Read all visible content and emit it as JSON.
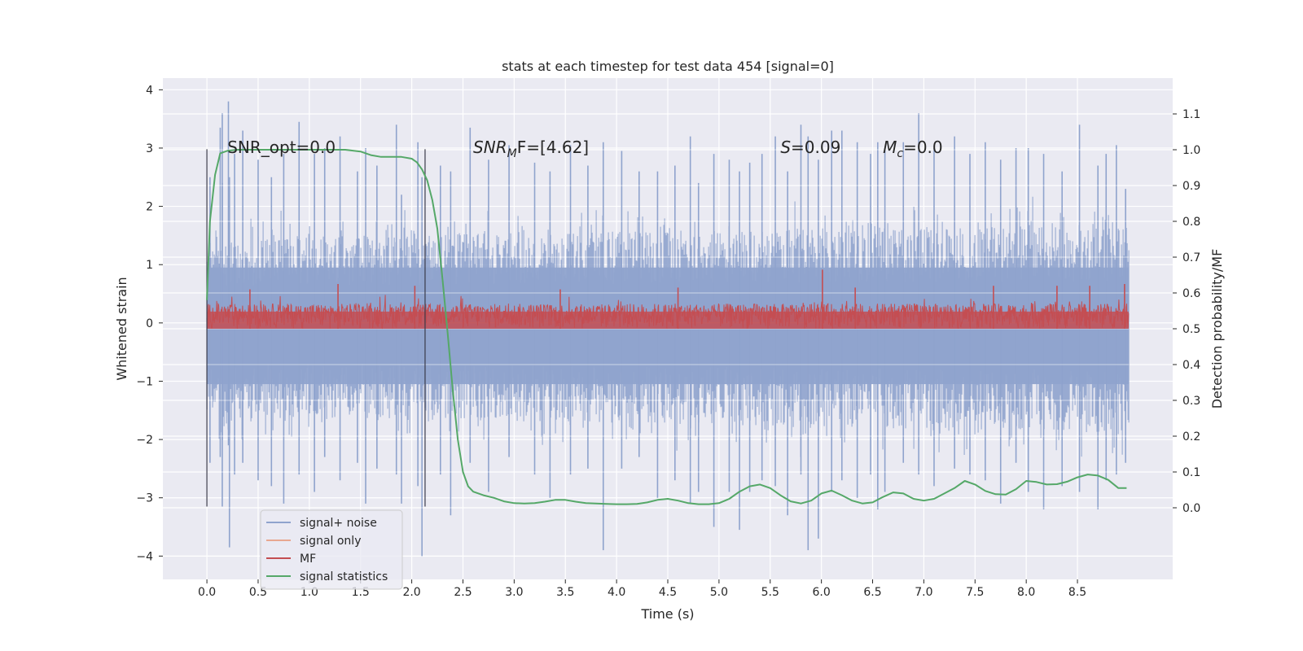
{
  "chart_data": {
    "type": "line",
    "title": "stats at each timestep for test data 454 [signal=0]",
    "xlabel": "Time (s)",
    "ylabel_left": "Whitened strain",
    "ylabel_right": "Detection probability/MF",
    "xlim": [
      -0.43,
      9.43
    ],
    "ylim_left": [
      -4.4,
      4.2
    ],
    "ylim_right": [
      -0.2,
      1.2
    ],
    "xticks": [
      0.0,
      0.5,
      1.0,
      1.5,
      2.0,
      2.5,
      3.0,
      3.5,
      4.0,
      4.5,
      5.0,
      5.5,
      6.0,
      6.5,
      7.0,
      7.5,
      8.0,
      8.5
    ],
    "xtick_labels": [
      "0.0",
      "0.5",
      "1.0",
      "1.5",
      "2.0",
      "2.5",
      "3.0",
      "3.5",
      "4.0",
      "4.5",
      "5.0",
      "5.5",
      "6.0",
      "6.5",
      "7.0",
      "7.5",
      "8.0",
      "8.5"
    ],
    "yticks_left": [
      -4,
      -3,
      -2,
      -1,
      0,
      1,
      2,
      3,
      4
    ],
    "ytick_labels_left": [
      "−4",
      "−3",
      "−2",
      "−1",
      "0",
      "1",
      "2",
      "3",
      "4"
    ],
    "yticks_right": [
      0.0,
      0.1,
      0.2,
      0.3,
      0.4,
      0.5,
      0.6,
      0.7,
      0.8,
      0.9,
      1.0,
      1.1
    ],
    "ytick_labels_right": [
      "0.0",
      "0.1",
      "0.2",
      "0.3",
      "0.4",
      "0.5",
      "0.6",
      "0.7",
      "0.8",
      "0.9",
      "1.0",
      "1.1"
    ],
    "grid": true,
    "legend": {
      "placement": "lower-left",
      "entries": [
        {
          "label": "signal+ noise",
          "color": "#8fa3cd"
        },
        {
          "label": "signal only",
          "color": "#e8a890"
        },
        {
          "label": "MF",
          "color": "#c44e52"
        },
        {
          "label": "signal statistics",
          "color": "#55a868"
        }
      ]
    },
    "annotations": [
      {
        "text": "SNR_opt=0.0",
        "x": 0.2,
        "y": 3.0
      },
      {
        "prefix": "SNR",
        "sub": "M",
        "suffix": "F=[4.62]",
        "x": 2.6,
        "y": 3.0
      },
      {
        "prefix": "S",
        "sub": "",
        "suffix": "=0.09",
        "x": 5.6,
        "y": 3.0
      },
      {
        "prefix": "M",
        "sub": "c",
        "suffix": "=0.0",
        "x": 6.6,
        "y": 3.0
      }
    ],
    "vertical_lines": [
      {
        "x": 0.0,
        "ymin": -3.15,
        "ymax": 2.98
      },
      {
        "x": 2.13,
        "ymin": -3.15,
        "ymax": 2.98
      }
    ],
    "series": [
      {
        "name": "signal+ noise",
        "axis": "left",
        "color": "#8fa3cd",
        "x_range": [
          0.0,
          9.0
        ],
        "band_low": [
          -1.25,
          -1.3,
          -1.4,
          -1.45
        ],
        "band_high": [
          1.15,
          1.2,
          1.25,
          1.3
        ],
        "spikes": [
          {
            "x": 0.03,
            "hi": 2.5,
            "lo": -2.4
          },
          {
            "x": 0.13,
            "hi": 3.35,
            "lo": -2.3
          },
          {
            "x": 0.15,
            "hi": 3.6,
            "lo": -2.0
          },
          {
            "x": 0.15,
            "hi": 2.4,
            "lo": -3.15
          },
          {
            "x": 0.21,
            "hi": 3.8,
            "lo": -2.1
          },
          {
            "x": 0.22,
            "hi": 2.5,
            "lo": -3.85
          },
          {
            "x": 0.27,
            "hi": 2.9,
            "lo": -2.6
          },
          {
            "x": 0.35,
            "hi": 3.3,
            "lo": -2.4
          },
          {
            "x": 0.5,
            "hi": 2.8,
            "lo": -2.7
          },
          {
            "x": 0.63,
            "hi": 2.5,
            "lo": -2.8
          },
          {
            "x": 0.75,
            "hi": 2.9,
            "lo": -3.1
          },
          {
            "x": 0.9,
            "hi": 3.45,
            "lo": -2.6
          },
          {
            "x": 1.05,
            "hi": 2.9,
            "lo": -2.9
          },
          {
            "x": 1.15,
            "hi": 3.0,
            "lo": -2.3
          },
          {
            "x": 1.3,
            "hi": 3.2,
            "lo": -2.7
          },
          {
            "x": 1.47,
            "hi": 2.6,
            "lo": -2.4
          },
          {
            "x": 1.55,
            "hi": 3.0,
            "lo": -3.1
          },
          {
            "x": 1.66,
            "hi": 2.7,
            "lo": -2.5
          },
          {
            "x": 1.85,
            "hi": 3.4,
            "lo": -2.6
          },
          {
            "x": 1.9,
            "hi": 2.2,
            "lo": -3.1
          },
          {
            "x": 2.06,
            "hi": 3.1,
            "lo": -2.8
          },
          {
            "x": 2.1,
            "hi": 2.5,
            "lo": -4.0
          },
          {
            "x": 2.28,
            "hi": 2.7,
            "lo": -2.6
          },
          {
            "x": 2.38,
            "hi": 2.6,
            "lo": -3.3
          },
          {
            "x": 2.57,
            "hi": 3.35,
            "lo": -2.4
          },
          {
            "x": 2.75,
            "hi": 2.8,
            "lo": -2.9
          },
          {
            "x": 2.95,
            "hi": 3.05,
            "lo": -2.3
          },
          {
            "x": 3.2,
            "hi": 2.75,
            "lo": -2.6
          },
          {
            "x": 3.35,
            "hi": 2.6,
            "lo": -3.0
          },
          {
            "x": 3.55,
            "hi": 3.05,
            "lo": -2.6
          },
          {
            "x": 3.72,
            "hi": 2.7,
            "lo": -2.5
          },
          {
            "x": 3.87,
            "hi": 3.1,
            "lo": -3.9
          },
          {
            "x": 4.05,
            "hi": 2.95,
            "lo": -2.5
          },
          {
            "x": 4.22,
            "hi": 2.6,
            "lo": -2.3
          },
          {
            "x": 4.4,
            "hi": 2.6,
            "lo": -3.0
          },
          {
            "x": 4.57,
            "hi": 2.7,
            "lo": -2.7
          },
          {
            "x": 4.72,
            "hi": 3.2,
            "lo": -3.1
          },
          {
            "x": 4.8,
            "hi": 2.4,
            "lo": -2.9
          },
          {
            "x": 4.95,
            "hi": 2.9,
            "lo": -3.5
          },
          {
            "x": 5.1,
            "hi": 2.8,
            "lo": -2.9
          },
          {
            "x": 5.2,
            "hi": 2.6,
            "lo": -3.55
          },
          {
            "x": 5.3,
            "hi": 2.75,
            "lo": -2.9
          },
          {
            "x": 5.42,
            "hi": 2.9,
            "lo": -2.7
          },
          {
            "x": 5.55,
            "hi": 3.2,
            "lo": -2.8
          },
          {
            "x": 5.67,
            "hi": 2.6,
            "lo": -3.3
          },
          {
            "x": 5.8,
            "hi": 3.4,
            "lo": -2.6
          },
          {
            "x": 5.87,
            "hi": 3.2,
            "lo": -3.9
          },
          {
            "x": 5.97,
            "hi": 2.8,
            "lo": -3.7
          },
          {
            "x": 6.1,
            "hi": 3.3,
            "lo": -2.9
          },
          {
            "x": 6.2,
            "hi": 3.3,
            "lo": -2.7
          },
          {
            "x": 6.35,
            "hi": 3.1,
            "lo": -3.0
          },
          {
            "x": 6.48,
            "hi": 2.9,
            "lo": -2.6
          },
          {
            "x": 6.55,
            "hi": 3.1,
            "lo": -3.2
          },
          {
            "x": 6.62,
            "hi": 3.0,
            "lo": -2.9
          },
          {
            "x": 6.8,
            "hi": 3.1,
            "lo": -2.4
          },
          {
            "x": 6.95,
            "hi": 3.6,
            "lo": -2.6
          },
          {
            "x": 7.1,
            "hi": 3.0,
            "lo": -2.8
          },
          {
            "x": 7.3,
            "hi": 3.2,
            "lo": -2.5
          },
          {
            "x": 7.45,
            "hi": 2.9,
            "lo": -2.6
          },
          {
            "x": 7.6,
            "hi": 3.1,
            "lo": -2.7
          },
          {
            "x": 7.75,
            "hi": 2.8,
            "lo": -3.1
          },
          {
            "x": 7.9,
            "hi": 3.0,
            "lo": -2.4
          },
          {
            "x": 8.02,
            "hi": 3.0,
            "lo": -2.9
          },
          {
            "x": 8.17,
            "hi": 2.9,
            "lo": -3.2
          },
          {
            "x": 8.35,
            "hi": 2.6,
            "lo": -2.8
          },
          {
            "x": 8.52,
            "hi": 3.4,
            "lo": -2.9
          },
          {
            "x": 8.7,
            "hi": 2.7,
            "lo": -3.2
          },
          {
            "x": 8.78,
            "hi": 2.9,
            "lo": -2.7
          },
          {
            "x": 8.88,
            "hi": 3.05,
            "lo": -2.6
          },
          {
            "x": 8.97,
            "hi": 2.3,
            "lo": -2.4
          }
        ]
      },
      {
        "name": "signal only",
        "axis": "left",
        "color": "#e8a890",
        "x": [
          0.0,
          9.0
        ],
        "y": [
          0.0,
          0.0
        ]
      },
      {
        "name": "MF",
        "axis": "right",
        "color": "#c44e52",
        "x_range": [
          0.0,
          9.0
        ],
        "base_low": 0.5,
        "base_high": 0.57,
        "peaks": [
          {
            "x": 0.42,
            "y": 0.61
          },
          {
            "x": 1.28,
            "y": 0.625
          },
          {
            "x": 2.03,
            "y": 0.62
          },
          {
            "x": 3.45,
            "y": 0.61
          },
          {
            "x": 4.6,
            "y": 0.615
          },
          {
            "x": 6.01,
            "y": 0.665
          },
          {
            "x": 6.33,
            "y": 0.615
          },
          {
            "x": 7.68,
            "y": 0.62
          },
          {
            "x": 8.3,
            "y": 0.62
          },
          {
            "x": 8.62,
            "y": 0.62
          },
          {
            "x": 8.96,
            "y": 0.625
          }
        ]
      },
      {
        "name": "signal statistics",
        "axis": "right",
        "color": "#55a868",
        "x": [
          0.0,
          0.03,
          0.08,
          0.13,
          0.2,
          0.3,
          0.5,
          0.8,
          1.0,
          1.2,
          1.35,
          1.5,
          1.6,
          1.7,
          1.8,
          1.9,
          2.0,
          2.05,
          2.1,
          2.15,
          2.2,
          2.25,
          2.3,
          2.35,
          2.4,
          2.45,
          2.5,
          2.55,
          2.6,
          2.7,
          2.8,
          2.9,
          3.0,
          3.1,
          3.2,
          3.3,
          3.4,
          3.5,
          3.6,
          3.7,
          3.8,
          3.9,
          4.0,
          4.1,
          4.2,
          4.3,
          4.4,
          4.5,
          4.6,
          4.7,
          4.8,
          4.9,
          5.0,
          5.1,
          5.2,
          5.3,
          5.4,
          5.5,
          5.6,
          5.7,
          5.8,
          5.9,
          6.0,
          6.1,
          6.2,
          6.3,
          6.4,
          6.5,
          6.6,
          6.7,
          6.8,
          6.9,
          7.0,
          7.1,
          7.2,
          7.3,
          7.4,
          7.5,
          7.6,
          7.7,
          7.8,
          7.9,
          8.0,
          8.1,
          8.2,
          8.3,
          8.4,
          8.5,
          8.6,
          8.7,
          8.8,
          8.9,
          8.98
        ],
        "y": [
          0.58,
          0.8,
          0.93,
          0.99,
          0.997,
          1.0,
          1.0,
          1.0,
          1.0,
          1.0,
          1.0,
          0.995,
          0.985,
          0.98,
          0.98,
          0.98,
          0.975,
          0.965,
          0.945,
          0.915,
          0.86,
          0.78,
          0.64,
          0.49,
          0.33,
          0.19,
          0.1,
          0.06,
          0.045,
          0.035,
          0.028,
          0.018,
          0.013,
          0.012,
          0.013,
          0.017,
          0.022,
          0.022,
          0.017,
          0.013,
          0.012,
          0.011,
          0.01,
          0.01,
          0.011,
          0.015,
          0.022,
          0.025,
          0.02,
          0.013,
          0.01,
          0.01,
          0.013,
          0.025,
          0.045,
          0.06,
          0.065,
          0.055,
          0.035,
          0.018,
          0.012,
          0.02,
          0.04,
          0.048,
          0.035,
          0.02,
          0.012,
          0.015,
          0.03,
          0.043,
          0.04,
          0.025,
          0.02,
          0.025,
          0.04,
          0.055,
          0.075,
          0.065,
          0.047,
          0.038,
          0.037,
          0.052,
          0.075,
          0.072,
          0.065,
          0.066,
          0.073,
          0.085,
          0.093,
          0.09,
          0.078,
          0.055,
          0.055
        ]
      }
    ]
  }
}
